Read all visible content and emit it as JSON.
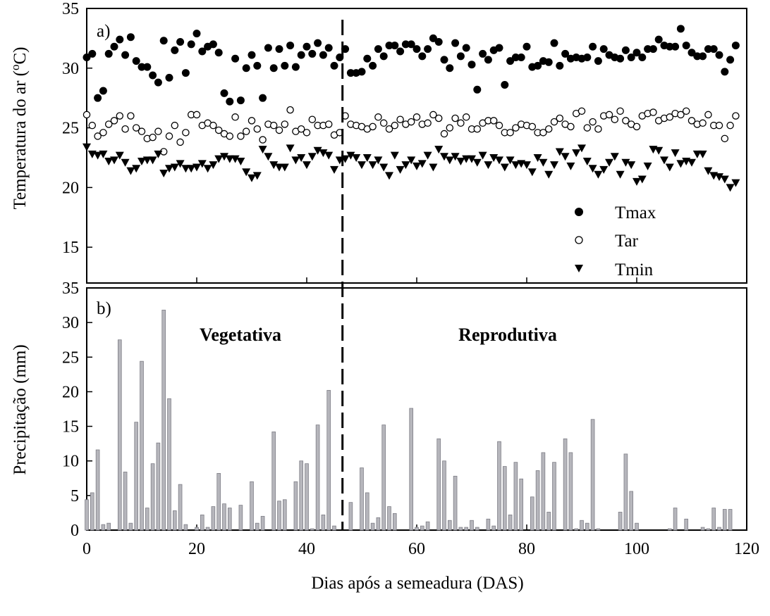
{
  "x_axis": {
    "label": "Dias após a semeadura (DAS)",
    "ticks": [
      "0",
      "20",
      "40",
      "60",
      "80",
      "100",
      "120"
    ]
  },
  "divider_day": 46.5,
  "chart_data": [
    {
      "type": "scatter",
      "panel_label": "a)",
      "ylabel": "Temperatura do ar (°C)",
      "ylabel_parts": {
        "pre": "Temperatura do ar (",
        "sup": "o",
        "post": "C)"
      },
      "xlim": [
        0,
        120
      ],
      "ylim": [
        12,
        35
      ],
      "y_ticks": [
        "15",
        "20",
        "25",
        "30",
        "35"
      ],
      "legend": {
        "position": "bottom-right",
        "entries": [
          "Tmax",
          "Tar",
          "Tmin"
        ]
      },
      "series": [
        {
          "name": "Tmax",
          "marker": "filled-circle",
          "x": [
            0,
            1,
            2,
            3,
            4,
            5,
            6,
            7,
            8,
            9,
            10,
            11,
            12,
            13,
            14,
            15,
            16,
            17,
            18,
            19,
            20,
            21,
            22,
            23,
            24,
            25,
            26,
            27,
            28,
            29,
            30,
            31,
            32,
            33,
            34,
            35,
            36,
            37,
            38,
            39,
            40,
            41,
            42,
            43,
            44,
            45,
            46,
            47,
            48,
            49,
            50,
            51,
            52,
            53,
            54,
            55,
            56,
            57,
            58,
            59,
            60,
            61,
            62,
            63,
            64,
            65,
            66,
            67,
            68,
            69,
            70,
            71,
            72,
            73,
            74,
            75,
            76,
            77,
            78,
            79,
            80,
            81,
            82,
            83,
            84,
            85,
            86,
            87,
            88,
            89,
            90,
            91,
            92,
            93,
            94,
            95,
            96,
            97,
            98,
            99,
            100,
            101,
            102,
            103,
            104,
            105,
            106,
            107,
            108,
            109,
            110,
            111,
            112,
            113,
            114,
            115,
            116,
            117,
            118
          ],
          "values": [
            30.9,
            31.2,
            27.5,
            28.1,
            31.2,
            31.8,
            32.4,
            31.1,
            32.6,
            30.6,
            30.1,
            30.1,
            29.4,
            28.8,
            32.3,
            29.2,
            31.5,
            32.2,
            29.6,
            32.0,
            32.9,
            31.4,
            31.8,
            32.0,
            31.3,
            27.9,
            27.2,
            30.8,
            27.3,
            30.0,
            31.1,
            30.2,
            27.5,
            31.7,
            30.0,
            31.6,
            30.2,
            31.9,
            30.1,
            31.1,
            31.8,
            31.2,
            32.1,
            31.1,
            31.7,
            30.2,
            30.9,
            31.6,
            29.6,
            29.6,
            29.7,
            30.8,
            30.2,
            31.6,
            31.0,
            31.9,
            31.9,
            31.4,
            32.0,
            32.0,
            31.6,
            31.0,
            31.6,
            32.5,
            32.2,
            30.7,
            30.0,
            32.1,
            31.0,
            31.7,
            30.3,
            28.2,
            31.2,
            30.7,
            31.5,
            31.7,
            28.6,
            30.6,
            30.9,
            30.9,
            31.8,
            30.1,
            30.2,
            30.6,
            30.5,
            32.1,
            30.2,
            31.2,
            30.8,
            30.9,
            30.8,
            30.9,
            31.8,
            30.6,
            31.6,
            31.1,
            30.9,
            30.8,
            31.5,
            30.9,
            31.3,
            30.9,
            31.6,
            31.6,
            32.4,
            31.9,
            31.8,
            31.8,
            33.3,
            31.9,
            31.3,
            31.0,
            31.0,
            31.6,
            31.6,
            31.1,
            29.7,
            30.7,
            31.9
          ]
        },
        {
          "name": "Tar",
          "marker": "open-circle",
          "x": [
            0,
            1,
            2,
            3,
            4,
            5,
            6,
            7,
            8,
            9,
            10,
            11,
            12,
            13,
            14,
            15,
            16,
            17,
            18,
            19,
            20,
            21,
            22,
            23,
            24,
            25,
            26,
            27,
            28,
            29,
            30,
            31,
            32,
            33,
            34,
            35,
            36,
            37,
            38,
            39,
            40,
            41,
            42,
            43,
            44,
            45,
            46,
            47,
            48,
            49,
            50,
            51,
            52,
            53,
            54,
            55,
            56,
            57,
            58,
            59,
            60,
            61,
            62,
            63,
            64,
            65,
            66,
            67,
            68,
            69,
            70,
            71,
            72,
            73,
            74,
            75,
            76,
            77,
            78,
            79,
            80,
            81,
            82,
            83,
            84,
            85,
            86,
            87,
            88,
            89,
            90,
            91,
            92,
            93,
            94,
            95,
            96,
            97,
            98,
            99,
            100,
            101,
            102,
            103,
            104,
            105,
            106,
            107,
            108,
            109,
            110,
            111,
            112,
            113,
            114,
            115,
            116,
            117,
            118
          ],
          "values": [
            26.1,
            25.2,
            24.3,
            24.6,
            25.3,
            25.6,
            26.0,
            24.9,
            26.0,
            25.0,
            24.7,
            24.1,
            24.2,
            24.7,
            23.0,
            24.3,
            25.2,
            23.8,
            24.6,
            26.1,
            26.1,
            25.2,
            25.4,
            25.2,
            24.8,
            24.5,
            24.3,
            25.9,
            24.3,
            24.7,
            25.6,
            24.9,
            24.0,
            25.3,
            25.2,
            24.8,
            25.3,
            26.5,
            24.7,
            24.9,
            24.6,
            25.7,
            25.2,
            25.2,
            25.3,
            24.4,
            24.6,
            26.0,
            25.3,
            25.2,
            25.1,
            24.9,
            25.1,
            25.9,
            25.4,
            24.9,
            25.2,
            25.7,
            25.3,
            25.5,
            25.9,
            25.3,
            25.4,
            26.1,
            25.8,
            24.5,
            25.0,
            25.8,
            25.4,
            25.9,
            24.9,
            24.9,
            25.4,
            25.6,
            25.6,
            25.2,
            24.6,
            24.6,
            25.0,
            25.3,
            25.2,
            25.1,
            24.6,
            24.6,
            24.9,
            25.5,
            25.8,
            25.3,
            25.1,
            26.2,
            26.4,
            25.0,
            25.5,
            24.9,
            26.0,
            26.1,
            25.7,
            26.4,
            25.6,
            25.3,
            25.1,
            26.0,
            26.2,
            26.3,
            25.6,
            25.8,
            25.9,
            26.2,
            26.1,
            26.4,
            25.6,
            25.3,
            25.4,
            26.1,
            25.2,
            25.2,
            24.1,
            25.2,
            26.0
          ]
        },
        {
          "name": "Tmin",
          "marker": "filled-triangle-down",
          "x": [
            0,
            1,
            2,
            3,
            4,
            5,
            6,
            7,
            8,
            9,
            10,
            11,
            12,
            13,
            14,
            15,
            16,
            17,
            18,
            19,
            20,
            21,
            22,
            23,
            24,
            25,
            26,
            27,
            28,
            29,
            30,
            31,
            32,
            33,
            34,
            35,
            36,
            37,
            38,
            39,
            40,
            41,
            42,
            43,
            44,
            45,
            46,
            47,
            48,
            49,
            50,
            51,
            52,
            53,
            54,
            55,
            56,
            57,
            58,
            59,
            60,
            61,
            62,
            63,
            64,
            65,
            66,
            67,
            68,
            69,
            70,
            71,
            72,
            73,
            74,
            75,
            76,
            77,
            78,
            79,
            80,
            81,
            82,
            83,
            84,
            85,
            86,
            87,
            88,
            89,
            90,
            91,
            92,
            93,
            94,
            95,
            96,
            97,
            98,
            99,
            100,
            101,
            102,
            103,
            104,
            105,
            106,
            107,
            108,
            109,
            110,
            111,
            112,
            113,
            114,
            115,
            116,
            117,
            118
          ],
          "values": [
            23.4,
            22.8,
            22.7,
            22.8,
            22.2,
            22.3,
            22.7,
            22.1,
            21.4,
            21.6,
            22.2,
            22.3,
            22.3,
            22.8,
            21.2,
            21.6,
            21.7,
            22.0,
            21.6,
            21.6,
            21.7,
            22.0,
            21.6,
            21.9,
            22.4,
            22.6,
            22.4,
            22.4,
            22.2,
            21.3,
            20.8,
            21.0,
            23.2,
            22.6,
            21.9,
            21.7,
            21.7,
            23.3,
            22.3,
            22.5,
            21.9,
            22.6,
            23.1,
            22.9,
            22.7,
            21.5,
            22.3,
            22.4,
            22.7,
            22.5,
            21.9,
            22.5,
            21.9,
            22.3,
            21.7,
            21.0,
            22.7,
            21.5,
            21.9,
            22.3,
            21.8,
            22.0,
            22.7,
            21.7,
            23.2,
            22.6,
            22.3,
            22.6,
            22.2,
            22.4,
            22.4,
            22.1,
            22.7,
            21.9,
            22.5,
            22.3,
            21.7,
            22.3,
            21.9,
            22.0,
            21.9,
            21.3,
            22.5,
            22.1,
            21.1,
            21.9,
            23.0,
            22.6,
            21.8,
            22.9,
            23.3,
            22.2,
            21.6,
            21.1,
            21.5,
            22.1,
            22.6,
            21.1,
            22.1,
            21.9,
            20.5,
            20.7,
            21.8,
            23.2,
            23.1,
            22.3,
            21.7,
            22.9,
            22.0,
            22.2,
            22.1,
            22.8,
            22.8,
            21.4,
            21.0,
            20.9,
            20.7,
            20.0,
            20.4
          ]
        }
      ]
    },
    {
      "type": "bar",
      "panel_label": "b)",
      "ylabel": "Precipitação (mm)",
      "xlim": [
        0,
        120
      ],
      "ylim": [
        0,
        35
      ],
      "y_ticks": [
        "0",
        "5",
        "10",
        "15",
        "20",
        "25",
        "30",
        "35"
      ],
      "annotations": [
        {
          "text": "Vegetativa",
          "x": 24
        },
        {
          "text": "Reprodutiva",
          "x": 79
        }
      ],
      "bar_color": "#b6b6bc",
      "x": [
        0,
        1,
        2,
        3,
        4,
        6,
        7,
        8,
        9,
        10,
        11,
        12,
        13,
        14,
        15,
        16,
        17,
        18,
        20,
        21,
        22,
        23,
        24,
        25,
        26,
        28,
        30,
        31,
        32,
        34,
        35,
        36,
        38,
        39,
        40,
        41,
        42,
        43,
        44,
        45,
        48,
        50,
        51,
        52,
        53,
        54,
        55,
        56,
        59,
        60,
        61,
        62,
        64,
        65,
        66,
        67,
        68,
        69,
        70,
        71,
        73,
        74,
        75,
        76,
        77,
        78,
        79,
        81,
        82,
        83,
        84,
        85,
        87,
        88,
        89,
        90,
        91,
        92,
        93,
        97,
        98,
        99,
        100,
        106,
        107,
        109,
        112,
        113,
        114,
        115,
        116,
        117
      ],
      "values": [
        4.4,
        5.4,
        11.6,
        0.8,
        1.0,
        27.5,
        8.4,
        1.0,
        15.6,
        24.4,
        3.2,
        9.6,
        12.6,
        31.8,
        19.0,
        2.8,
        6.6,
        0.8,
        0.4,
        2.2,
        0.4,
        3.4,
        8.2,
        3.8,
        3.2,
        3.6,
        7.0,
        1.0,
        2.0,
        14.2,
        4.2,
        4.4,
        7.0,
        10.0,
        9.6,
        0.2,
        15.2,
        2.2,
        20.2,
        0.6,
        4.0,
        9.0,
        5.4,
        1.0,
        1.8,
        15.2,
        3.4,
        2.4,
        17.6,
        0.4,
        0.6,
        1.2,
        13.2,
        10.0,
        1.4,
        7.8,
        0.4,
        0.4,
        1.4,
        0.4,
        1.6,
        0.6,
        12.8,
        9.2,
        2.2,
        9.8,
        7.4,
        4.8,
        8.6,
        11.2,
        2.6,
        9.8,
        13.2,
        11.2,
        0.2,
        1.4,
        1.0,
        16.0,
        0.2,
        2.6,
        11.0,
        5.6,
        1.0,
        0.2,
        3.2,
        1.6,
        0.4,
        0.2,
        3.2,
        0.4,
        3.0,
        3.0
      ]
    }
  ]
}
